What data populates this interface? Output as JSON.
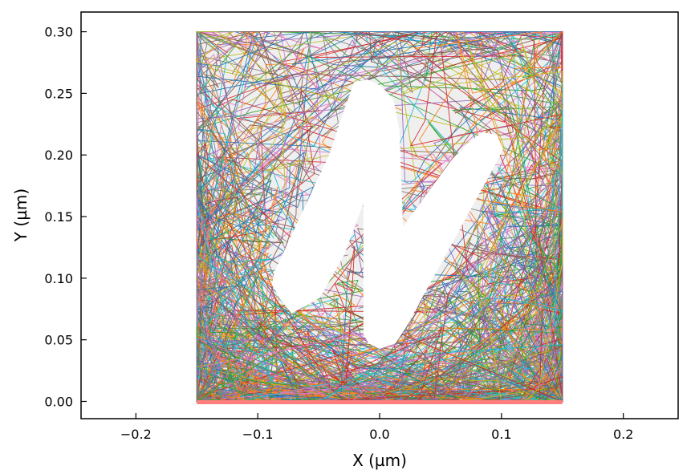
{
  "chart_data": {
    "type": "line",
    "title": "",
    "xlabel": "X (µm)",
    "ylabel": "Y (µm)",
    "xlim": [
      -0.245,
      0.245
    ],
    "ylim": [
      -0.014,
      0.316
    ],
    "xticks": [
      -0.2,
      -0.1,
      0.0,
      0.1,
      0.2
    ],
    "xtick_labels": [
      "−0.2",
      "−0.1",
      "0.0",
      "0.1",
      "0.2"
    ],
    "yticks": [
      0.0,
      0.05,
      0.1,
      0.15,
      0.2,
      0.25,
      0.3
    ],
    "ytick_labels": [
      "0.00",
      "0.05",
      "0.10",
      "0.15",
      "0.20",
      "0.25",
      "0.30"
    ],
    "grid": false,
    "legend": "none",
    "background_region": {
      "x": [
        -0.15,
        0.15
      ],
      "y": [
        0.0,
        0.3
      ],
      "color": "#efefef"
    },
    "excluded_shape": {
      "description_color": "#ffffff",
      "polygon": [
        [
          -0.072,
          0.073
        ],
        [
          -0.08,
          0.083
        ],
        [
          -0.087,
          0.095
        ],
        [
          -0.085,
          0.105
        ],
        [
          -0.04,
          0.2
        ],
        [
          -0.03,
          0.23
        ],
        [
          -0.02,
          0.258
        ],
        [
          -0.01,
          0.26
        ],
        [
          0.0,
          0.255
        ],
        [
          0.01,
          0.245
        ],
        [
          0.015,
          0.22
        ],
        [
          0.018,
          0.138
        ],
        [
          0.06,
          0.195
        ],
        [
          0.075,
          0.21
        ],
        [
          0.085,
          0.217
        ],
        [
          0.095,
          0.215
        ],
        [
          0.1,
          0.205
        ],
        [
          0.095,
          0.195
        ],
        [
          0.02,
          0.06
        ],
        [
          0.012,
          0.048
        ],
        [
          0.0,
          0.044
        ],
        [
          -0.008,
          0.048
        ],
        [
          -0.012,
          0.055
        ],
        [
          -0.012,
          0.168
        ],
        [
          -0.03,
          0.12
        ],
        [
          -0.05,
          0.085
        ]
      ]
    },
    "trajectories": {
      "count": 220,
      "x_range": [
        -0.15,
        0.15
      ],
      "y_range": [
        0.0,
        0.3
      ],
      "colors": [
        "#1f77b4",
        "#ff7f0e",
        "#2ca02c",
        "#d62728",
        "#9467bd",
        "#8c564b",
        "#e377c2",
        "#7f7f7f",
        "#bcbd22",
        "#17becf"
      ]
    },
    "baseline": {
      "y": 0.0,
      "x": [
        -0.15,
        0.15
      ],
      "color": "#ff7f7f"
    }
  }
}
